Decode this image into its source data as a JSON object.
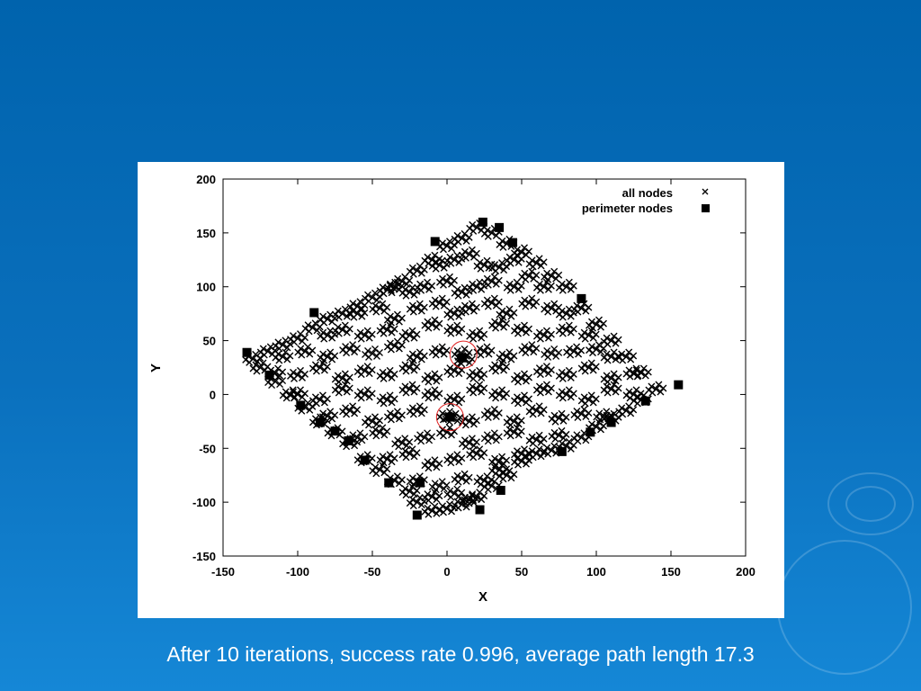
{
  "caption": "After 10 iterations, success rate 0.996, average path length 17.3",
  "colors": {
    "background": "#0a70bd",
    "marker": "#000000",
    "highlight_circle": "#e02020",
    "panel": "#ffffff"
  },
  "chart_data": {
    "type": "scatter",
    "xlabel": "X",
    "ylabel": "Y",
    "xlim": [
      -150,
      200
    ],
    "ylim": [
      -150,
      200
    ],
    "xticks": [
      "-150",
      "-100",
      "-50",
      "0",
      "50",
      "100",
      "150",
      "200"
    ],
    "yticks": [
      "200",
      "150",
      "100",
      "50",
      "0",
      "-50",
      "-100",
      "-150"
    ],
    "grid": false,
    "legend_placement": "top-right",
    "series": [
      {
        "name": "all nodes",
        "marker": "x",
        "points": [
          [
            -130,
            33
          ],
          [
            -120,
            40
          ],
          [
            -110,
            46
          ],
          [
            -100,
            52
          ],
          [
            -90,
            62
          ],
          [
            -80,
            70
          ],
          [
            -70,
            75
          ],
          [
            -60,
            82
          ],
          [
            -50,
            90
          ],
          [
            -40,
            97
          ],
          [
            -30,
            105
          ],
          [
            -20,
            115
          ],
          [
            -10,
            125
          ],
          [
            0,
            138
          ],
          [
            10,
            145
          ],
          [
            20,
            155
          ],
          [
            30,
            150
          ],
          [
            40,
            140
          ],
          [
            50,
            132
          ],
          [
            60,
            122
          ],
          [
            70,
            110
          ],
          [
            80,
            100
          ],
          [
            90,
            80
          ],
          [
            100,
            65
          ],
          [
            110,
            50
          ],
          [
            120,
            35
          ],
          [
            130,
            20
          ],
          [
            140,
            5
          ],
          [
            130,
            -5
          ],
          [
            120,
            -15
          ],
          [
            110,
            -22
          ],
          [
            100,
            -30
          ],
          [
            90,
            -40
          ],
          [
            80,
            -48
          ],
          [
            70,
            -52
          ],
          [
            60,
            -55
          ],
          [
            50,
            -62
          ],
          [
            40,
            -75
          ],
          [
            30,
            -85
          ],
          [
            20,
            -95
          ],
          [
            10,
            -102
          ],
          [
            0,
            -106
          ],
          [
            -10,
            -108
          ],
          [
            -20,
            -100
          ],
          [
            -25,
            -90
          ],
          [
            -35,
            -80
          ],
          [
            -45,
            -70
          ],
          [
            -55,
            -60
          ],
          [
            -65,
            -45
          ],
          [
            -75,
            -35
          ],
          [
            -85,
            -25
          ],
          [
            -95,
            -12
          ],
          [
            -105,
            0
          ],
          [
            -115,
            12
          ],
          [
            -125,
            25
          ],
          [
            -5,
            120
          ],
          [
            5,
            125
          ],
          [
            15,
            130
          ],
          [
            25,
            120
          ],
          [
            35,
            118
          ],
          [
            45,
            125
          ],
          [
            -35,
            100
          ],
          [
            -25,
            95
          ],
          [
            -15,
            100
          ],
          [
            0,
            105
          ],
          [
            10,
            95
          ],
          [
            20,
            100
          ],
          [
            30,
            105
          ],
          [
            45,
            100
          ],
          [
            55,
            110
          ],
          [
            65,
            100
          ],
          [
            -60,
            75
          ],
          [
            -45,
            80
          ],
          [
            -35,
            70
          ],
          [
            -20,
            80
          ],
          [
            -5,
            85
          ],
          [
            5,
            75
          ],
          [
            15,
            80
          ],
          [
            30,
            85
          ],
          [
            40,
            75
          ],
          [
            55,
            85
          ],
          [
            70,
            80
          ],
          [
            80,
            75
          ],
          [
            -80,
            55
          ],
          [
            -70,
            60
          ],
          [
            -55,
            55
          ],
          [
            -40,
            60
          ],
          [
            -25,
            55
          ],
          [
            -10,
            65
          ],
          [
            5,
            60
          ],
          [
            20,
            55
          ],
          [
            35,
            65
          ],
          [
            50,
            60
          ],
          [
            65,
            55
          ],
          [
            80,
            60
          ],
          [
            95,
            55
          ],
          [
            -110,
            35
          ],
          [
            -95,
            40
          ],
          [
            -80,
            35
          ],
          [
            -65,
            42
          ],
          [
            -50,
            38
          ],
          [
            -35,
            45
          ],
          [
            -20,
            35
          ],
          [
            -5,
            40
          ],
          [
            10,
            38
          ],
          [
            12,
            32
          ],
          [
            25,
            40
          ],
          [
            40,
            35
          ],
          [
            55,
            42
          ],
          [
            70,
            38
          ],
          [
            85,
            40
          ],
          [
            100,
            42
          ],
          [
            110,
            35
          ],
          [
            -115,
            20
          ],
          [
            -100,
            18
          ],
          [
            -85,
            25
          ],
          [
            -70,
            15
          ],
          [
            -55,
            22
          ],
          [
            -40,
            18
          ],
          [
            -25,
            25
          ],
          [
            -10,
            15
          ],
          [
            5,
            22
          ],
          [
            20,
            18
          ],
          [
            35,
            25
          ],
          [
            50,
            15
          ],
          [
            65,
            22
          ],
          [
            80,
            18
          ],
          [
            95,
            25
          ],
          [
            110,
            15
          ],
          [
            125,
            20
          ],
          [
            -100,
            0
          ],
          [
            -85,
            -5
          ],
          [
            -70,
            5
          ],
          [
            -55,
            0
          ],
          [
            -40,
            -5
          ],
          [
            -25,
            5
          ],
          [
            -10,
            0
          ],
          [
            5,
            -5
          ],
          [
            20,
            5
          ],
          [
            35,
            0
          ],
          [
            50,
            -5
          ],
          [
            65,
            5
          ],
          [
            80,
            0
          ],
          [
            95,
            -5
          ],
          [
            110,
            5
          ],
          [
            125,
            0
          ],
          [
            -80,
            -20
          ],
          [
            -65,
            -15
          ],
          [
            -50,
            -25
          ],
          [
            -35,
            -20
          ],
          [
            -20,
            -15
          ],
          [
            0,
            -20
          ],
          [
            4,
            -22
          ],
          [
            15,
            -25
          ],
          [
            30,
            -18
          ],
          [
            45,
            -25
          ],
          [
            60,
            -15
          ],
          [
            75,
            -22
          ],
          [
            90,
            -18
          ],
          [
            105,
            -20
          ],
          [
            -60,
            -40
          ],
          [
            -45,
            -35
          ],
          [
            -30,
            -45
          ],
          [
            -15,
            -40
          ],
          [
            0,
            -35
          ],
          [
            15,
            -45
          ],
          [
            30,
            -40
          ],
          [
            45,
            -35
          ],
          [
            60,
            -42
          ],
          [
            75,
            -38
          ],
          [
            -40,
            -60
          ],
          [
            -25,
            -55
          ],
          [
            -10,
            -65
          ],
          [
            5,
            -60
          ],
          [
            20,
            -55
          ],
          [
            35,
            -62
          ],
          [
            50,
            -55
          ],
          [
            -20,
            -80
          ],
          [
            -5,
            -85
          ],
          [
            10,
            -78
          ],
          [
            25,
            -80
          ],
          [
            35,
            -70
          ],
          [
            -10,
            -95
          ],
          [
            5,
            -92
          ],
          [
            15,
            -98
          ]
        ]
      },
      {
        "name": "perimeter nodes",
        "marker": "filled-square",
        "points": [
          [
            -134,
            39
          ],
          [
            -119,
            18
          ],
          [
            -89,
            76
          ],
          [
            -98,
            -10
          ],
          [
            -85,
            -26
          ],
          [
            -75,
            -34
          ],
          [
            -66,
            -43
          ],
          [
            -55,
            -61
          ],
          [
            -39,
            -82
          ],
          [
            -18,
            -82
          ],
          [
            -20,
            -112
          ],
          [
            22,
            -107
          ],
          [
            36,
            -89
          ],
          [
            -8,
            142
          ],
          [
            24,
            160
          ],
          [
            35,
            155
          ],
          [
            44,
            141
          ],
          [
            90,
            89
          ],
          [
            155,
            9
          ],
          [
            133,
            -6
          ],
          [
            110,
            -26
          ],
          [
            96,
            -35
          ],
          [
            77,
            -53
          ],
          [
            2,
            -21
          ],
          [
            10,
            34
          ]
        ]
      }
    ],
    "annotations": [
      {
        "type": "circle",
        "center": [
          11,
          37
        ],
        "color": "#e02020"
      },
      {
        "type": "circle",
        "center": [
          2,
          -21
        ],
        "color": "#e02020"
      }
    ]
  }
}
